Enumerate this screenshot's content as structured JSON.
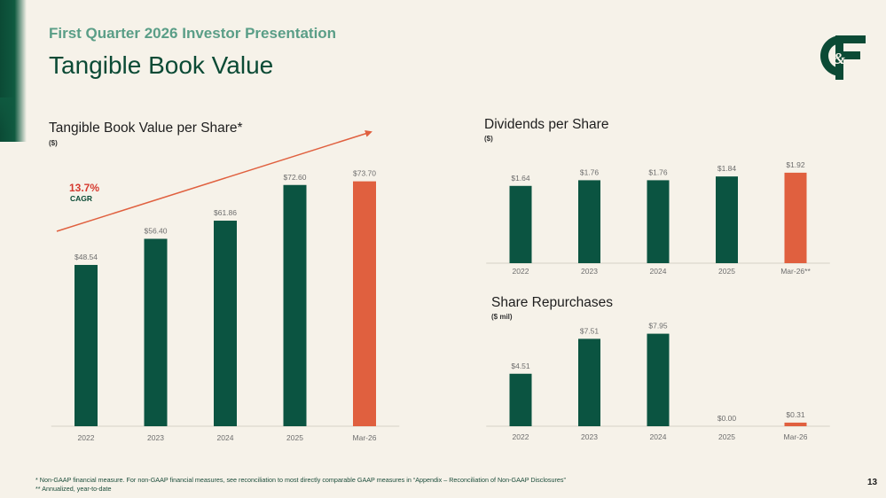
{
  "header": {
    "subtitle": "First Quarter 2026 Investor Presentation",
    "title": "Tangible Book Value",
    "logo_text": "C&F"
  },
  "colors": {
    "primary": "#0b5441",
    "highlight": "#e0603f",
    "cagr_text": "#d63a2f",
    "background": "#f6f2e9"
  },
  "cagr": {
    "value": "13.7%",
    "label": "CAGR"
  },
  "chart_data": [
    {
      "type": "bar",
      "title": "Tangible Book Value per Share*",
      "unit": "($)",
      "categories": [
        "2022",
        "2023",
        "2024",
        "2025",
        "Mar-26"
      ],
      "values": [
        48.54,
        56.4,
        61.86,
        72.6,
        73.7
      ],
      "labels": [
        "$48.54",
        "$56.40",
        "$61.86",
        "$72.60",
        "$73.70"
      ],
      "highlight_index": 4,
      "ylim": [
        0,
        80
      ]
    },
    {
      "type": "bar",
      "title": "Dividends per Share",
      "unit": "($)",
      "categories": [
        "2022",
        "2023",
        "2024",
        "2025",
        "Mar-26**"
      ],
      "values": [
        1.64,
        1.76,
        1.76,
        1.84,
        1.92
      ],
      "labels": [
        "$1.64",
        "$1.76",
        "$1.76",
        "$1.84",
        "$1.92"
      ],
      "highlight_index": 4,
      "ylim": [
        0,
        2.2
      ]
    },
    {
      "type": "bar",
      "title": "Share Repurchases",
      "unit": "($ mil)",
      "categories": [
        "2022",
        "2023",
        "2024",
        "2025",
        "Mar-26"
      ],
      "values": [
        4.51,
        7.51,
        7.95,
        0.0,
        0.31
      ],
      "labels": [
        "$4.51",
        "$7.51",
        "$7.95",
        "$0.00",
        "$0.31"
      ],
      "highlight_index": 4,
      "ylim": [
        0,
        8.3
      ]
    }
  ],
  "footnotes": [
    "* Non-GAAP financial measure.  For non-GAAP financial measures, see reconciliation to most directly comparable GAAP measures in “Appendix – Reconciliation of Non-GAAP Disclosures”",
    "** Annualized, year-to-date"
  ],
  "page_number": "13"
}
